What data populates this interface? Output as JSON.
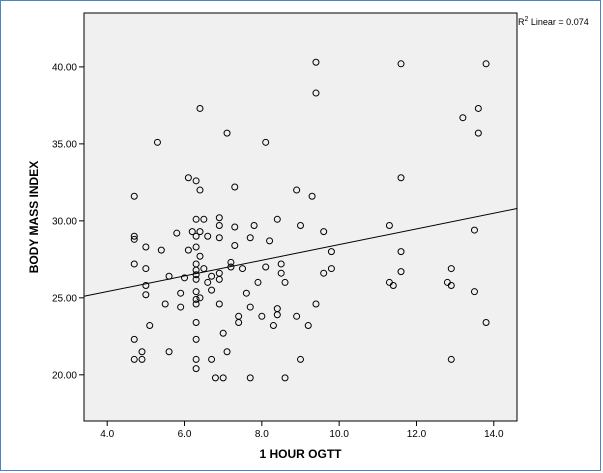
{
  "chart_data": {
    "type": "scatter",
    "xlabel": "1 HOUR OGTT",
    "ylabel": "BODY MASS INDEX",
    "xlim": [
      3.4,
      14.6
    ],
    "ylim": [
      17.0,
      43.5
    ],
    "x_ticks": [
      4.0,
      6.0,
      8.0,
      10.0,
      12.0,
      14.0
    ],
    "x_tick_labels": [
      "4.0",
      "6.0",
      "8.0",
      "10.0",
      "12.0",
      "14.0"
    ],
    "y_ticks": [
      20.0,
      25.0,
      30.0,
      35.0,
      40.0
    ],
    "y_tick_labels": [
      "20.00",
      "25.00",
      "30.00",
      "35.00",
      "40.00"
    ],
    "fit_line": {
      "label_prefix": "R",
      "label_sup": "2",
      "label_suffix": " Linear = 0.074",
      "x": [
        3.4,
        14.6
      ],
      "y": [
        25.1,
        30.8
      ]
    },
    "colors": {
      "plot_bg": "#f0f0f0",
      "frame": "#4a86c5",
      "marker": "#000000"
    },
    "points": [
      [
        4.7,
        31.6
      ],
      [
        4.7,
        29.0
      ],
      [
        4.7,
        28.8
      ],
      [
        4.7,
        27.2
      ],
      [
        4.7,
        22.3
      ],
      [
        4.7,
        21.0
      ],
      [
        4.9,
        21.5
      ],
      [
        4.9,
        21.0
      ],
      [
        5.0,
        28.3
      ],
      [
        5.0,
        26.9
      ],
      [
        5.0,
        25.8
      ],
      [
        5.0,
        25.2
      ],
      [
        5.1,
        23.2
      ],
      [
        5.3,
        35.1
      ],
      [
        5.4,
        28.1
      ],
      [
        5.5,
        24.6
      ],
      [
        5.6,
        21.5
      ],
      [
        5.6,
        26.4
      ],
      [
        5.8,
        29.2
      ],
      [
        5.9,
        25.3
      ],
      [
        5.9,
        24.4
      ],
      [
        6.0,
        26.3
      ],
      [
        6.1,
        32.8
      ],
      [
        6.1,
        28.1
      ],
      [
        6.2,
        29.3
      ],
      [
        6.3,
        32.6
      ],
      [
        6.3,
        30.1
      ],
      [
        6.3,
        29.0
      ],
      [
        6.3,
        28.3
      ],
      [
        6.3,
        27.2
      ],
      [
        6.3,
        26.8
      ],
      [
        6.3,
        26.5
      ],
      [
        6.3,
        26.2
      ],
      [
        6.3,
        25.4
      ],
      [
        6.3,
        24.9
      ],
      [
        6.3,
        24.6
      ],
      [
        6.3,
        23.4
      ],
      [
        6.3,
        22.3
      ],
      [
        6.3,
        21.0
      ],
      [
        6.3,
        20.4
      ],
      [
        6.4,
        37.3
      ],
      [
        6.4,
        32.0
      ],
      [
        6.4,
        29.3
      ],
      [
        6.4,
        27.7
      ],
      [
        6.4,
        25.0
      ],
      [
        6.5,
        30.1
      ],
      [
        6.5,
        26.9
      ],
      [
        6.6,
        29.0
      ],
      [
        6.6,
        26.0
      ],
      [
        6.7,
        26.4
      ],
      [
        6.7,
        25.5
      ],
      [
        6.7,
        21.0
      ],
      [
        6.8,
        19.8
      ],
      [
        6.9,
        30.2
      ],
      [
        6.9,
        29.7
      ],
      [
        6.9,
        28.9
      ],
      [
        6.9,
        26.6
      ],
      [
        6.9,
        26.2
      ],
      [
        6.9,
        24.6
      ],
      [
        7.0,
        22.7
      ],
      [
        7.0,
        19.8
      ],
      [
        7.1,
        35.7
      ],
      [
        7.1,
        21.5
      ],
      [
        7.2,
        27.3
      ],
      [
        7.2,
        27.0
      ],
      [
        7.3,
        32.2
      ],
      [
        7.3,
        29.6
      ],
      [
        7.3,
        28.4
      ],
      [
        7.4,
        23.8
      ],
      [
        7.4,
        23.4
      ],
      [
        7.5,
        26.9
      ],
      [
        7.6,
        25.3
      ],
      [
        7.7,
        28.9
      ],
      [
        7.7,
        24.4
      ],
      [
        7.7,
        19.8
      ],
      [
        7.8,
        29.7
      ],
      [
        7.9,
        26.0
      ],
      [
        8.0,
        23.8
      ],
      [
        8.1,
        27.0
      ],
      [
        8.1,
        35.1
      ],
      [
        8.2,
        28.7
      ],
      [
        8.3,
        23.2
      ],
      [
        8.4,
        24.3
      ],
      [
        8.4,
        23.9
      ],
      [
        8.4,
        30.1
      ],
      [
        8.5,
        27.2
      ],
      [
        8.5,
        26.6
      ],
      [
        8.6,
        26.0
      ],
      [
        8.6,
        19.8
      ],
      [
        8.9,
        32.0
      ],
      [
        8.9,
        23.8
      ],
      [
        9.0,
        29.7
      ],
      [
        9.0,
        21.0
      ],
      [
        9.2,
        23.2
      ],
      [
        9.3,
        31.6
      ],
      [
        9.4,
        40.3
      ],
      [
        9.4,
        38.3
      ],
      [
        9.4,
        24.6
      ],
      [
        9.6,
        29.3
      ],
      [
        9.6,
        26.6
      ],
      [
        9.8,
        28.0
      ],
      [
        9.8,
        26.9
      ],
      [
        11.3,
        29.7
      ],
      [
        11.3,
        26.0
      ],
      [
        11.4,
        25.8
      ],
      [
        11.6,
        40.2
      ],
      [
        11.6,
        32.8
      ],
      [
        11.6,
        28.0
      ],
      [
        11.6,
        26.7
      ],
      [
        12.8,
        26.0
      ],
      [
        12.9,
        26.9
      ],
      [
        12.9,
        25.8
      ],
      [
        12.9,
        21.0
      ],
      [
        13.2,
        36.7
      ],
      [
        13.5,
        25.4
      ],
      [
        13.5,
        29.4
      ],
      [
        13.6,
        37.3
      ],
      [
        13.6,
        35.7
      ],
      [
        13.8,
        40.2
      ],
      [
        13.8,
        23.4
      ]
    ]
  }
}
